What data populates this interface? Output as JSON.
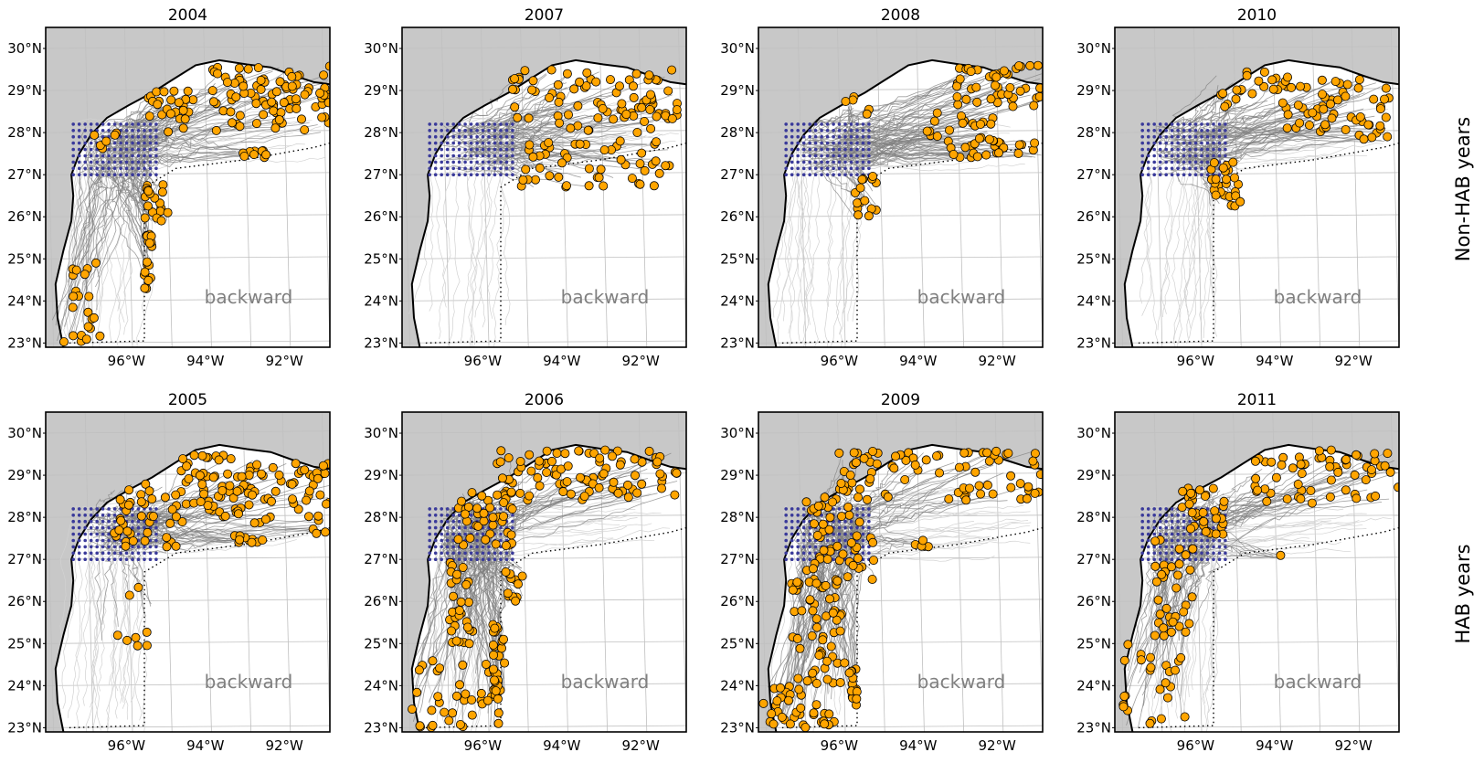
{
  "figure": {
    "row_labels": [
      "Non-HAB years",
      "HAB years"
    ],
    "panel_annotation": "backward"
  },
  "colors": {
    "land": "#c8c8c8",
    "coastline": "#000000",
    "trajectory": "#808080",
    "trajectory_faint": "#d2d2d2",
    "endpoint_fill": "#ffa500",
    "endpoint_edge": "#000000",
    "release_grid": "#3a3a9a",
    "gridline": "#c0c0c0",
    "annotation": "#808080"
  },
  "chart_data": [
    {
      "type": "map",
      "title": "2004",
      "row": "Non-HAB years",
      "annotation": "backward",
      "lon_ticks": [
        "96°W",
        "94°W",
        "92°W"
      ],
      "lat_ticks": [
        "30°N",
        "29°N",
        "28°N",
        "27°N",
        "26°N",
        "25°N",
        "24°N",
        "23°N"
      ],
      "lon_range": [
        -98.0,
        -90.8
      ],
      "lat_range": [
        22.9,
        30.5
      ],
      "grid": true,
      "release_grid": {
        "lon_range": [
          -97.3,
          -95.2
        ],
        "lat_range": [
          27.0,
          28.3
        ]
      },
      "endpoint_clusters": [
        {
          "lon": [
            -93.8,
            -90.8
          ],
          "lat": [
            28.0,
            29.6
          ],
          "n": 90
        },
        {
          "lon": [
            -95.4,
            -94.2
          ],
          "lat": [
            28.0,
            29.0
          ],
          "n": 25
        },
        {
          "lon": [
            -95.6,
            -94.9
          ],
          "lat": [
            25.8,
            26.8
          ],
          "n": 18
        },
        {
          "lon": [
            -95.5,
            -95.3
          ],
          "lat": [
            24.2,
            25.6
          ],
          "n": 18
        },
        {
          "lon": [
            -97.5,
            -96.6
          ],
          "lat": [
            23.7,
            25.0
          ],
          "n": 12
        },
        {
          "lon": [
            -97.9,
            -96.6
          ],
          "lat": [
            23.0,
            23.6
          ],
          "n": 10
        },
        {
          "lon": [
            -93.2,
            -92.4
          ],
          "lat": [
            27.4,
            27.6
          ],
          "n": 10
        },
        {
          "lon": [
            -96.8,
            -96.2
          ],
          "lat": [
            27.6,
            28.1
          ],
          "n": 6
        }
      ]
    },
    {
      "type": "map",
      "title": "2007",
      "row": "Non-HAB years",
      "annotation": "backward",
      "lon_ticks": [
        "96°W",
        "94°W",
        "92°W"
      ],
      "lat_ticks": [
        "30°N",
        "29°N",
        "28°N",
        "27°N",
        "26°N",
        "25°N",
        "24°N",
        "23°N"
      ],
      "lon_range": [
        -98.0,
        -90.8
      ],
      "lat_range": [
        22.9,
        30.5
      ],
      "grid": true,
      "release_grid": {
        "lon_range": [
          -97.3,
          -95.2
        ],
        "lat_range": [
          27.0,
          28.3
        ]
      },
      "endpoint_clusters": [
        {
          "lon": [
            -95.2,
            -91.0
          ],
          "lat": [
            28.3,
            29.5
          ],
          "n": 70
        },
        {
          "lon": [
            -95.2,
            -91.2
          ],
          "lat": [
            26.7,
            27.8
          ],
          "n": 50
        },
        {
          "lon": [
            -94.3,
            -91.5
          ],
          "lat": [
            28.0,
            28.6
          ],
          "n": 15
        }
      ]
    },
    {
      "type": "map",
      "title": "2008",
      "row": "Non-HAB years",
      "annotation": "backward",
      "lon_ticks": [
        "96°W",
        "94°W",
        "92°W"
      ],
      "lat_ticks": [
        "30°N",
        "29°N",
        "28°N",
        "27°N",
        "26°N",
        "25°N",
        "24°N",
        "23°N"
      ],
      "lon_range": [
        -98.0,
        -90.8
      ],
      "lat_range": [
        22.9,
        30.5
      ],
      "grid": true,
      "release_grid": {
        "lon_range": [
          -97.3,
          -95.2
        ],
        "lat_range": [
          27.0,
          28.3
        ]
      },
      "endpoint_clusters": [
        {
          "lon": [
            -93.0,
            -90.8
          ],
          "lat": [
            28.6,
            29.6
          ],
          "n": 45
        },
        {
          "lon": [
            -93.2,
            -90.8
          ],
          "lat": [
            27.4,
            27.8
          ],
          "n": 25
        },
        {
          "lon": [
            -95.6,
            -95.0
          ],
          "lat": [
            26.0,
            27.0
          ],
          "n": 15
        },
        {
          "lon": [
            -94.0,
            -92.0
          ],
          "lat": [
            27.8,
            28.5
          ],
          "n": 20
        },
        {
          "lon": [
            -95.8,
            -95.2
          ],
          "lat": [
            28.4,
            28.9
          ],
          "n": 5
        }
      ]
    },
    {
      "type": "map",
      "title": "2010",
      "row": "Non-HAB years",
      "annotation": "backward",
      "lon_ticks": [
        "96°W",
        "94°W",
        "92°W"
      ],
      "lat_ticks": [
        "30°N",
        "29°N",
        "28°N",
        "27°N",
        "26°N",
        "25°N",
        "24°N",
        "23°N"
      ],
      "lon_range": [
        -98.0,
        -90.8
      ],
      "lat_range": [
        22.9,
        30.5
      ],
      "grid": true,
      "release_grid": {
        "lon_range": [
          -97.3,
          -95.2
        ],
        "lat_range": [
          27.0,
          28.3
        ]
      },
      "endpoint_clusters": [
        {
          "lon": [
            -94.0,
            -91.0
          ],
          "lat": [
            28.0,
            29.3
          ],
          "n": 50
        },
        {
          "lon": [
            -95.6,
            -94.8
          ],
          "lat": [
            26.2,
            27.5
          ],
          "n": 25
        },
        {
          "lon": [
            -95.5,
            -93.6
          ],
          "lat": [
            28.6,
            29.5
          ],
          "n": 20
        },
        {
          "lon": [
            -92.0,
            -90.9
          ],
          "lat": [
            27.7,
            28.4
          ],
          "n": 10
        }
      ]
    },
    {
      "type": "map",
      "title": "2005",
      "row": "HAB years",
      "annotation": "backward",
      "lon_ticks": [
        "96°W",
        "94°W",
        "92°W"
      ],
      "lat_ticks": [
        "30°N",
        "29°N",
        "28°N",
        "27°N",
        "26°N",
        "25°N",
        "24°N",
        "23°N"
      ],
      "lon_range": [
        -98.0,
        -90.8
      ],
      "lat_range": [
        22.9,
        30.5
      ],
      "grid": true,
      "release_grid": {
        "lon_range": [
          -97.3,
          -95.2
        ],
        "lat_range": [
          27.0,
          28.3
        ]
      },
      "endpoint_clusters": [
        {
          "lon": [
            -94.6,
            -90.8
          ],
          "lat": [
            27.8,
            29.5
          ],
          "n": 110
        },
        {
          "lon": [
            -96.3,
            -94.5
          ],
          "lat": [
            27.3,
            28.8
          ],
          "n": 40
        },
        {
          "lon": [
            -93.5,
            -92.5
          ],
          "lat": [
            27.4,
            27.6
          ],
          "n": 10
        },
        {
          "lon": [
            -96.6,
            -95.3
          ],
          "lat": [
            24.8,
            26.6
          ],
          "n": 8
        },
        {
          "lon": [
            -91.3,
            -90.9
          ],
          "lat": [
            27.6,
            27.9
          ],
          "n": 3
        }
      ]
    },
    {
      "type": "map",
      "title": "2006",
      "row": "HAB years",
      "annotation": "backward",
      "lon_ticks": [
        "96°W",
        "94°W",
        "92°W"
      ],
      "lat_ticks": [
        "30°N",
        "29°N",
        "28°N",
        "27°N",
        "26°N",
        "25°N",
        "24°N",
        "23°N"
      ],
      "lon_range": [
        -98.0,
        -90.8
      ],
      "lat_range": [
        22.9,
        30.5
      ],
      "grid": true,
      "release_grid": {
        "lon_range": [
          -97.3,
          -95.2
        ],
        "lat_range": [
          27.0,
          28.3
        ]
      },
      "endpoint_clusters": [
        {
          "lon": [
            -95.6,
            -91.0
          ],
          "lat": [
            28.4,
            29.6
          ],
          "n": 90
        },
        {
          "lon": [
            -96.6,
            -95.2
          ],
          "lat": [
            27.3,
            28.6
          ],
          "n": 40
        },
        {
          "lon": [
            -96.8,
            -96.2
          ],
          "lat": [
            25.0,
            27.0
          ],
          "n": 30
        },
        {
          "lon": [
            -97.8,
            -95.5
          ],
          "lat": [
            23.0,
            24.6
          ],
          "n": 40
        },
        {
          "lon": [
            -95.7,
            -95.4
          ],
          "lat": [
            23.6,
            25.5
          ],
          "n": 25
        },
        {
          "lon": [
            -95.4,
            -94.9
          ],
          "lat": [
            25.8,
            26.8
          ],
          "n": 12
        }
      ]
    },
    {
      "type": "map",
      "title": "2009",
      "row": "HAB years",
      "annotation": "backward",
      "lon_ticks": [
        "96°W",
        "94°W",
        "92°W"
      ],
      "lat_ticks": [
        "30°N",
        "29°N",
        "28°N",
        "27°N",
        "26°N",
        "25°N",
        "24°N",
        "23°N"
      ],
      "lon_range": [
        -98.0,
        -90.8
      ],
      "lat_range": [
        22.9,
        30.5
      ],
      "grid": true,
      "release_grid": {
        "lon_range": [
          -97.3,
          -95.2
        ],
        "lat_range": [
          27.0,
          28.3
        ]
      },
      "endpoint_clusters": [
        {
          "lon": [
            -96.0,
            -90.8
          ],
          "lat": [
            28.4,
            29.6
          ],
          "n": 80
        },
        {
          "lon": [
            -96.8,
            -95.0
          ],
          "lat": [
            26.5,
            28.5
          ],
          "n": 50
        },
        {
          "lon": [
            -97.2,
            -95.8
          ],
          "lat": [
            24.0,
            26.5
          ],
          "n": 60
        },
        {
          "lon": [
            -97.9,
            -96.0
          ],
          "lat": [
            23.0,
            24.0
          ],
          "n": 35
        },
        {
          "lon": [
            -95.7,
            -95.5
          ],
          "lat": [
            23.5,
            24.4
          ],
          "n": 15
        },
        {
          "lon": [
            -94.5,
            -93.6
          ],
          "lat": [
            27.3,
            27.5
          ],
          "n": 5
        }
      ]
    },
    {
      "type": "map",
      "title": "2011",
      "row": "HAB years",
      "annotation": "backward",
      "lon_ticks": [
        "96°W",
        "94°W",
        "92°W"
      ],
      "lat_ticks": [
        "30°N",
        "29°N",
        "28°N",
        "27°N",
        "26°N",
        "25°N",
        "24°N",
        "23°N"
      ],
      "lon_range": [
        -98.0,
        -90.8
      ],
      "lat_range": [
        22.9,
        30.5
      ],
      "grid": true,
      "release_grid": {
        "lon_range": [
          -97.3,
          -95.2
        ],
        "lat_range": [
          27.0,
          28.3
        ]
      },
      "endpoint_clusters": [
        {
          "lon": [
            -94.5,
            -90.8
          ],
          "lat": [
            28.3,
            29.6
          ],
          "n": 60
        },
        {
          "lon": [
            -96.3,
            -95.2
          ],
          "lat": [
            27.5,
            28.7
          ],
          "n": 35
        },
        {
          "lon": [
            -97.0,
            -96.0
          ],
          "lat": [
            25.0,
            27.5
          ],
          "n": 35
        },
        {
          "lon": [
            -97.8,
            -96.2
          ],
          "lat": [
            23.0,
            25.0
          ],
          "n": 25
        },
        {
          "lon": [
            -94.0,
            -93.8
          ],
          "lat": [
            27.0,
            27.1
          ],
          "n": 1
        }
      ]
    }
  ]
}
